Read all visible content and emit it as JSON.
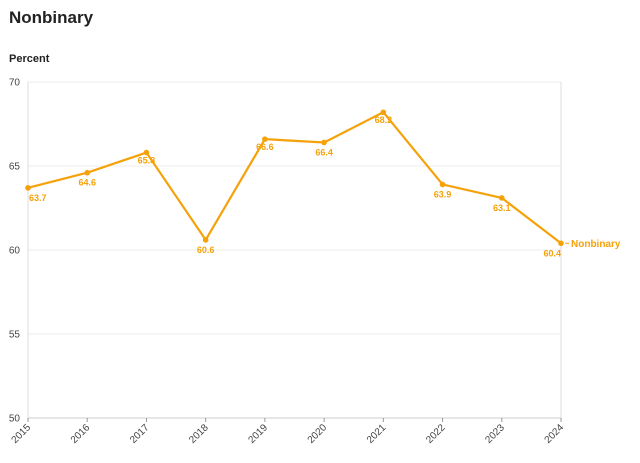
{
  "chart_data": {
    "type": "line",
    "title": "Nonbinary",
    "ylabel": "Percent",
    "xlabel": "",
    "x": [
      "2015",
      "2016",
      "2017",
      "2018",
      "2019",
      "2020",
      "2021",
      "2022",
      "2023",
      "2024"
    ],
    "series": [
      {
        "name": "Nonbinary",
        "values": [
          63.7,
          64.6,
          65.8,
          60.6,
          66.6,
          66.4,
          68.2,
          63.9,
          63.1,
          60.4
        ],
        "color": "#F5A20A"
      }
    ],
    "ylim": [
      50,
      70
    ],
    "yticks": [
      50,
      55,
      60,
      65,
      70
    ],
    "grid": true,
    "legend": "end-of-line label"
  }
}
